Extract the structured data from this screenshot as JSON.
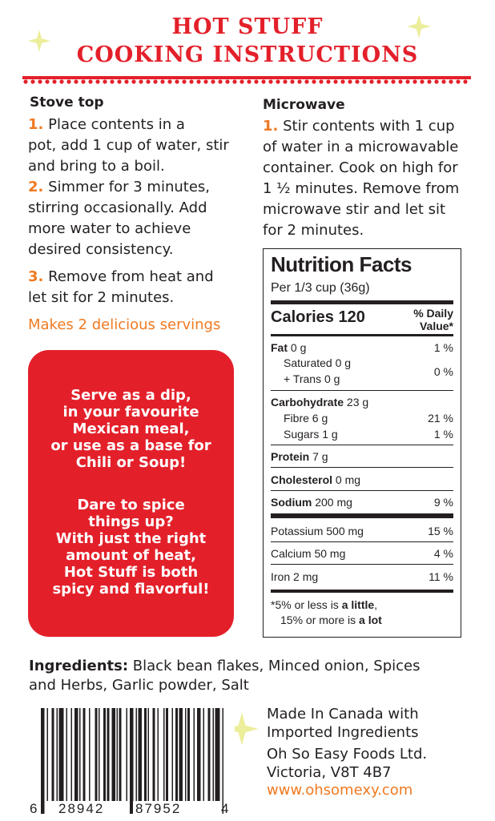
{
  "colors": {
    "red": "#e3202a",
    "orange": "#ef7a22",
    "star": "#ecee9c",
    "text": "#231f20"
  },
  "title": {
    "line1": "HOT STUFF",
    "line2": "COOKING INSTRUCTIONS"
  },
  "stovetop": {
    "heading": "Stove top",
    "steps": [
      {
        "num": "1.",
        "lines": [
          " Place contents in a",
          "pot, add 1 cup of water, stir",
          "and bring to a boil."
        ]
      },
      {
        "num": "2.",
        "lines": [
          " Simmer for 3 minutes,",
          "stirring occasionally. Add",
          "more water to achieve",
          "desired consistency."
        ]
      },
      {
        "num": "3.",
        "lines": [
          " Remove from heat and",
          "let sit for 2 minutes."
        ]
      }
    ],
    "servings": "Makes 2 delicious servings"
  },
  "microwave": {
    "heading": "Microwave",
    "num": "1.",
    "lines": [
      " Stir contents with 1 cup",
      "of water in a microwavable",
      "container. Cook on high for",
      "1 ½ minutes. Remove from",
      "microwave stir and let sit",
      "for 2 minutes."
    ]
  },
  "promo": {
    "para1": [
      "Serve as a dip,",
      "in your favourite",
      "Mexican meal,",
      "or use as a base for",
      "Chili or Soup!"
    ],
    "para2": [
      "Dare to spice",
      "things up?",
      "With just the right",
      "amount of heat,",
      "Hot Stuff is both",
      "spicy and flavorful!"
    ]
  },
  "nutrition": {
    "title": "Nutrition Facts",
    "serving": "Per 1/3 cup (36g)",
    "calories_label": "Calories 120",
    "dv_header": [
      "% Daily",
      "Value*"
    ],
    "fat": {
      "label": "Fat",
      "amount": "0 g",
      "dv": "1 %"
    },
    "saturated": "Saturated 0 g",
    "trans": "+ Trans 0 g",
    "sat_trans_dv": "0 %",
    "carb": {
      "label": "Carbohydrate",
      "amount": "23 g"
    },
    "fibre": {
      "label": "Fibre 6 g",
      "dv": "21 %"
    },
    "sugars": {
      "label": "Sugars 1 g",
      "dv": "1 %"
    },
    "protein": {
      "label": "Protein",
      "amount": "7 g"
    },
    "cholesterol": {
      "label": "Cholesterol",
      "amount": "0 mg"
    },
    "sodium": {
      "label": "Sodium",
      "amount": "200 mg",
      "dv": "9 %"
    },
    "potassium": {
      "label": "Potassium 500 mg",
      "dv": "15 %"
    },
    "calcium": {
      "label": "Calcium 50 mg",
      "dv": "4 %"
    },
    "iron": {
      "label": "Iron 2 mg",
      "dv": "11 %"
    },
    "footnote1": {
      "pre": "*5% or less is ",
      "bold": "a little",
      "post": ","
    },
    "footnote2": {
      "pre": "15% or more is ",
      "bold": "a lot"
    }
  },
  "ingredients": {
    "label": "Ingredients:",
    "text1": " Black bean flakes, Minced onion, Spices",
    "text2": "and Herbs, Garlic powder, Salt"
  },
  "barcode": {
    "d1": "6",
    "d2": "28942",
    "d3": "87952",
    "d4": "4"
  },
  "company": {
    "line1": "Made In Canada with",
    "line2": "Imported Ingredients",
    "name": "Oh So Easy Foods Ltd.",
    "city": "Victoria, V8T 4B7",
    "url": "www.ohsomexy.com"
  }
}
